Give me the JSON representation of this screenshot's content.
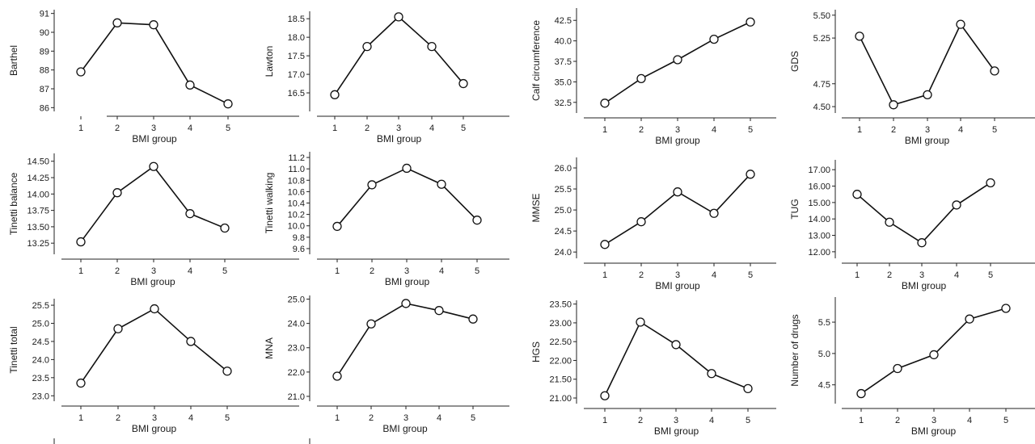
{
  "chart_data": [
    {
      "type": "line",
      "ylabel": "Barthel",
      "xlabel": "BMI group",
      "categories": [
        "1",
        "2",
        "3",
        "4",
        "5"
      ],
      "values": [
        87.9,
        90.5,
        90.4,
        87.2,
        86.2
      ],
      "ylim": [
        85.8,
        91.2
      ],
      "yticks": [
        86,
        87,
        88,
        89,
        90,
        91
      ],
      "ytick_labels": [
        "86",
        "87",
        "88",
        "89",
        "90",
        "91"
      ]
    },
    {
      "type": "line",
      "ylabel": "Lawton",
      "xlabel": "BMI group",
      "categories": [
        "1",
        "2",
        "3",
        "4",
        "5"
      ],
      "values": [
        16.45,
        17.75,
        18.55,
        17.75,
        16.75
      ],
      "ylim": [
        16.0,
        18.7
      ],
      "yticks": [
        16.5,
        17.0,
        17.5,
        18.0,
        18.5
      ],
      "ytick_labels": [
        "16.5",
        "17.0",
        "17.5",
        "18.0",
        "18.5"
      ]
    },
    {
      "type": "line",
      "ylabel": "Calf circumference",
      "xlabel": "BMI group",
      "categories": [
        "1",
        "2",
        "3",
        "4",
        "5"
      ],
      "values": [
        32.4,
        35.4,
        37.7,
        40.2,
        42.3
      ],
      "ylim": [
        31.2,
        44.0
      ],
      "yticks": [
        32.5,
        35.0,
        37.5,
        40.0,
        42.5
      ],
      "ytick_labels": [
        "32.5",
        "35.0",
        "37.5",
        "40.0",
        "42.5"
      ]
    },
    {
      "type": "line",
      "ylabel": "GDS",
      "xlabel": "BMI group",
      "categories": [
        "1",
        "2",
        "3",
        "4",
        "5"
      ],
      "values": [
        5.27,
        4.52,
        4.63,
        5.4,
        4.89
      ],
      "ylim": [
        4.43,
        5.56
      ],
      "yticks": [
        4.5,
        4.75,
        5.25,
        5.5
      ],
      "ytick_labels": [
        "4.50",
        "4.75",
        "5.25",
        "5.50"
      ]
    },
    {
      "type": "line",
      "ylabel": "Tinetti balance",
      "xlabel": "BMI group",
      "categories": [
        "1",
        "2",
        "3",
        "4",
        "5"
      ],
      "values": [
        13.27,
        14.02,
        14.42,
        13.7,
        13.48
      ],
      "ylim": [
        13.08,
        14.62
      ],
      "yticks": [
        13.25,
        13.5,
        13.75,
        14.0,
        14.25,
        14.5
      ],
      "ytick_labels": [
        "13.25",
        "13.50",
        "13.75",
        "14.00",
        "14.25",
        "14.50"
      ]
    },
    {
      "type": "line",
      "ylabel": "Tinetti walking",
      "xlabel": "BMI group",
      "categories": [
        "1",
        "2",
        "3",
        "4",
        "5"
      ],
      "values": [
        9.99,
        10.72,
        11.01,
        10.73,
        10.1
      ],
      "ylim": [
        9.5,
        11.3
      ],
      "yticks": [
        9.6,
        9.8,
        10.0,
        10.2,
        10.4,
        10.6,
        10.8,
        11.0,
        11.2
      ],
      "ytick_labels": [
        "9.6",
        "9.8",
        "10.0",
        "10.2",
        "10.4",
        "10.6",
        "10.8",
        "11.0",
        "11.2"
      ]
    },
    {
      "type": "line",
      "ylabel": "MMSE",
      "xlabel": "BMI group",
      "categories": [
        "1",
        "2",
        "3",
        "4",
        "5"
      ],
      "values": [
        24.18,
        24.72,
        25.43,
        24.92,
        25.85
      ],
      "ylim": [
        23.85,
        26.25
      ],
      "yticks": [
        24.0,
        24.5,
        25.0,
        25.5,
        26.0
      ],
      "ytick_labels": [
        "24.0",
        "24.5",
        "25.0",
        "25.5",
        "26.0"
      ]
    },
    {
      "type": "line",
      "ylabel": "TUG",
      "xlabel": "BMI group",
      "categories": [
        "1",
        "2",
        "3",
        "4",
        "5"
      ],
      "values": [
        15.5,
        13.8,
        12.55,
        14.85,
        16.2
      ],
      "ylim": [
        11.6,
        17.6
      ],
      "yticks": [
        12.0,
        13.0,
        14.0,
        15.0,
        16.0,
        17.0
      ],
      "ytick_labels": [
        "12.00",
        "13.00",
        "14.00",
        "15.00",
        "16.00",
        "17.00"
      ]
    },
    {
      "type": "line",
      "ylabel": "Tinetti total",
      "xlabel": "BMI group",
      "categories": [
        "1",
        "2",
        "3",
        "4",
        "5"
      ],
      "values": [
        23.35,
        24.85,
        25.4,
        24.5,
        23.68
      ],
      "ylim": [
        22.85,
        25.68
      ],
      "yticks": [
        23.0,
        23.5,
        24.0,
        24.5,
        25.0,
        25.5
      ],
      "ytick_labels": [
        "23.0",
        "23.5",
        "24.0",
        "24.5",
        "25.0",
        "25.5"
      ]
    },
    {
      "type": "line",
      "ylabel": "MNA",
      "xlabel": "BMI group",
      "categories": [
        "1",
        "2",
        "3",
        "4",
        "5"
      ],
      "values": [
        21.83,
        23.98,
        24.82,
        24.53,
        24.18
      ],
      "ylim": [
        20.8,
        25.15
      ],
      "yticks": [
        21.0,
        22.0,
        23.0,
        24.0,
        25.0
      ],
      "ytick_labels": [
        "21.0",
        "22.0",
        "23.0",
        "24.0",
        "25.0"
      ]
    },
    {
      "type": "line",
      "ylabel": "HGS",
      "xlabel": "BMI group",
      "categories": [
        "1",
        "2",
        "3",
        "4",
        "5"
      ],
      "values": [
        21.06,
        23.02,
        22.42,
        21.65,
        21.25
      ],
      "ylim": [
        20.85,
        23.6
      ],
      "yticks": [
        21.0,
        21.5,
        22.0,
        22.5,
        23.0,
        23.5
      ],
      "ytick_labels": [
        "21.00",
        "21.50",
        "22.00",
        "22.50",
        "23.00",
        "23.50"
      ]
    },
    {
      "type": "line",
      "ylabel": "Number of drugs",
      "xlabel": "BMI group",
      "categories": [
        "1",
        "2",
        "3",
        "4",
        "5"
      ],
      "values": [
        4.36,
        4.76,
        4.98,
        5.55,
        5.72
      ],
      "ylim": [
        4.2,
        5.9
      ],
      "yticks": [
        4.5,
        5.0,
        5.5
      ],
      "ytick_labels": [
        "4.5",
        "5.0",
        "5.5"
      ]
    }
  ]
}
